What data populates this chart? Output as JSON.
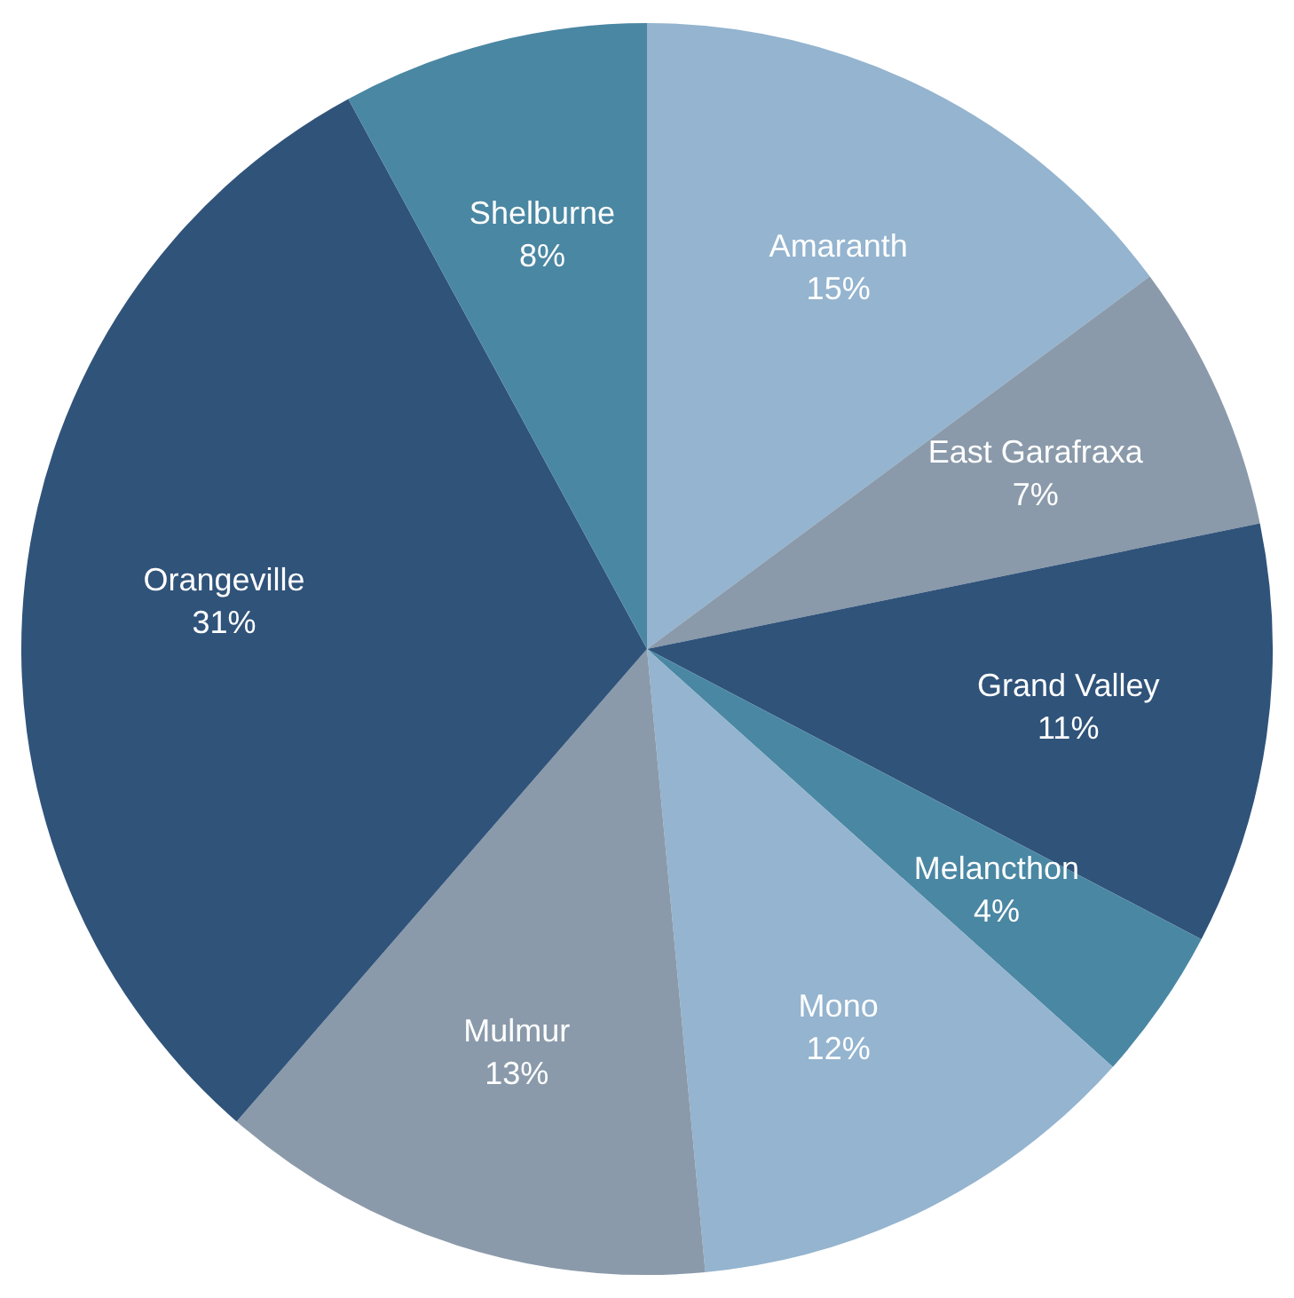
{
  "chart_data": {
    "type": "pie",
    "categories": [
      "Amaranth",
      "East Garafraxa",
      "Grand Valley",
      "Melancthon",
      "Mono",
      "Mulmur",
      "Orangeville",
      "Shelburne"
    ],
    "values": [
      15,
      7,
      11,
      4,
      12,
      13,
      31,
      8
    ],
    "value_labels": [
      "15%",
      "7%",
      "11%",
      "4%",
      "12%",
      "13%",
      "31%",
      "8%"
    ],
    "colors": [
      "#94b4cf",
      "#8a9aaa",
      "#30537a",
      "#4a87a3",
      "#94b4cf",
      "#8a9aaa",
      "#30537a",
      "#4a87a3"
    ],
    "legend": false
  }
}
